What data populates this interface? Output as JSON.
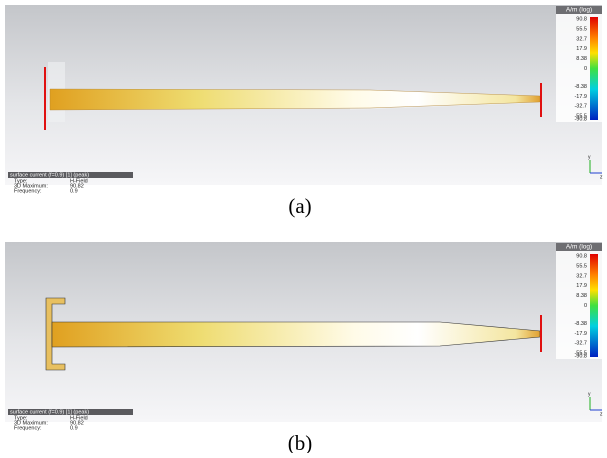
{
  "panels": [
    {
      "label": "(a)",
      "legend": {
        "title": "A/m (log)",
        "ticks": [
          "90.8",
          "55.5",
          "32.7",
          "17.9",
          "8.38",
          "0",
          "-8.38",
          "-17.9",
          "-32.7",
          "-55.5",
          "-90.8"
        ]
      },
      "info": {
        "title": "surface current (f=0.9) [1] (peak)",
        "rows": [
          [
            "Type:",
            "H-Field"
          ],
          [
            "3D Maximum:",
            "90.82"
          ],
          [
            "Frequency:",
            "0.9"
          ]
        ]
      },
      "axes": {
        "y": "y",
        "z": "z"
      }
    },
    {
      "label": "(b)",
      "legend": {
        "title": "A/m (log)",
        "ticks": [
          "90.8",
          "55.5",
          "32.7",
          "17.9",
          "8.38",
          "0",
          "-8.38",
          "-17.9",
          "-32.7",
          "-55.5",
          "-90.8"
        ]
      },
      "info": {
        "title": "surface current (f=0.9) [1] (peak)",
        "rows": [
          [
            "Type:",
            "H-Field"
          ],
          [
            "3D Maximum:",
            "90.82"
          ],
          [
            "Frequency:",
            "0.9"
          ]
        ]
      },
      "axes": {
        "y": "y",
        "z": "z"
      }
    }
  ]
}
